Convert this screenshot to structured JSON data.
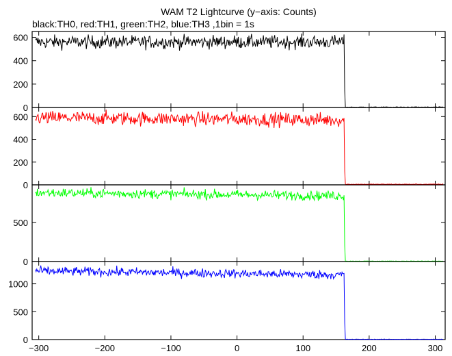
{
  "chart_data": {
    "type": "line",
    "title": "WAM T2 Lightcurve (y−axis: Counts)",
    "subtitle": "black:TH0, red:TH1, green:TH2, blue:TH3 ,1bin = 1s",
    "xlim": [
      -310,
      315
    ],
    "x_ticks": [
      -300,
      -200,
      -100,
      0,
      100,
      200,
      300
    ],
    "x_tick_labels": [
      "−300",
      "−200",
      "−100",
      "0",
      "100",
      "200",
      "300"
    ],
    "grid": false,
    "step_x": 163,
    "panels": [
      {
        "series_color": "#000000",
        "color_word": "black",
        "label": "TH0",
        "ylim": [
          0,
          650
        ],
        "y_ticks": [
          0,
          200,
          400,
          600
        ],
        "y_tick_labels": [
          "0",
          "200",
          "400",
          "600"
        ],
        "pre_level": 560,
        "noise": 28,
        "drift": 0,
        "spike": 140,
        "post_level": 3
      },
      {
        "series_color": "#ff0000",
        "color_word": "red",
        "label": "TH1",
        "ylim": [
          0,
          680
        ],
        "y_ticks": [
          0,
          200,
          400,
          600
        ],
        "y_tick_labels": [
          "0",
          "200",
          "400",
          "600"
        ],
        "pre_level": 590,
        "noise": 30,
        "drift": -20,
        "spike": 120,
        "post_level": 5
      },
      {
        "series_color": "#00ff00",
        "color_word": "green",
        "label": "TH2",
        "ylim": [
          0,
          980
        ],
        "y_ticks": [
          0,
          500
        ],
        "y_tick_labels": [
          "0",
          "500"
        ],
        "pre_level": 880,
        "noise": 30,
        "drift": -40,
        "spike": 200,
        "post_level": 5
      },
      {
        "series_color": "#0000ff",
        "color_word": "blue",
        "label": "TH3",
        "ylim": [
          0,
          1400
        ],
        "y_ticks": [
          0,
          500,
          1000
        ],
        "y_tick_labels": [
          "0",
          "500",
          "1000"
        ],
        "pre_level": 1230,
        "noise": 40,
        "drift": -70,
        "spike": 300,
        "post_level": 6
      }
    ]
  }
}
